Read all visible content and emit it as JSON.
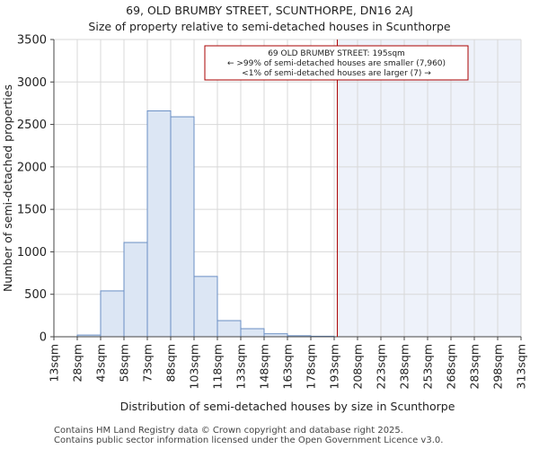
{
  "chart_data": {
    "type": "bar",
    "title": "69, OLD BRUMBY STREET, SCUNTHORPE, DN16 2AJ",
    "subtitle": "Size of property relative to semi-detached houses in Scunthorpe",
    "xlabel": "Distribution of semi-detached houses by size in Scunthorpe",
    "ylabel": "Number of semi-detached properties",
    "ylim": [
      0,
      3500
    ],
    "yticks": [
      0,
      500,
      1000,
      1500,
      2000,
      2500,
      3000,
      3500
    ],
    "categories": [
      "13sqm",
      "28sqm",
      "43sqm",
      "58sqm",
      "73sqm",
      "88sqm",
      "103sqm",
      "118sqm",
      "133sqm",
      "148sqm",
      "163sqm",
      "178sqm",
      "193sqm",
      "208sqm",
      "223sqm",
      "238sqm",
      "253sqm",
      "268sqm",
      "283sqm",
      "298sqm",
      "313sqm"
    ],
    "values": [
      0,
      20,
      540,
      1110,
      2660,
      2590,
      710,
      190,
      95,
      35,
      12,
      6,
      0,
      0,
      0,
      0,
      0,
      0,
      0,
      0,
      0
    ],
    "marker": {
      "value_sqm": 195,
      "line1": "69 OLD BRUMBY STREET: 195sqm",
      "line2": "← >99% of semi-detached houses are smaller (7,960)",
      "line3": "<1% of semi-detached houses are larger (7) →"
    },
    "grid": true,
    "colors": {
      "bar_fill": "#dce6f4",
      "bar_stroke": "#6a8fc4",
      "highlight_fill": "#eef2fa",
      "marker_line": "#aa0000",
      "grid": "#d8d8d8"
    }
  },
  "footer": {
    "line1": "Contains HM Land Registry data © Crown copyright and database right 2025.",
    "line2": "Contains public sector information licensed under the Open Government Licence v3.0."
  }
}
